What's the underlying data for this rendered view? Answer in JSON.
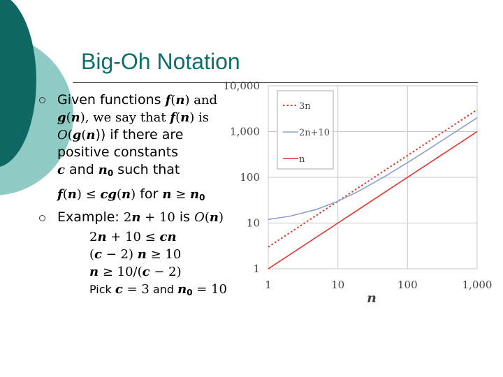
{
  "slide": {
    "title": "Big-Oh Notation",
    "bullet1": {
      "text": [
        "Given functions ",
        "f",
        "(",
        "n",
        ") and ",
        "g",
        "(",
        "n",
        "), we say that ",
        "f",
        "(",
        "n",
        ") is ",
        "O",
        "(",
        "g",
        "(",
        "n",
        ")) if there are ",
        "positive constants ",
        "c",
        " and ",
        "n",
        "0",
        " such that ",
        "f",
        "(",
        "n",
        ") ",
        "≤",
        " ",
        "cg",
        "(",
        "n",
        ")",
        " for ",
        "n",
        " ",
        "≥",
        " ",
        "n",
        "0"
      ]
    },
    "bullet2": {
      "text": [
        "Example: ",
        "2",
        "n",
        " + 10",
        " is ",
        "O",
        "(",
        "n",
        ")"
      ]
    },
    "steps": [
      [
        "2",
        "n",
        " + 10 ",
        "≤",
        " ",
        "cn"
      ],
      [
        "(",
        "c",
        " − 2) ",
        "n",
        " ",
        "≥",
        " 10"
      ],
      [
        "n",
        " ",
        "≥",
        " 10/(",
        "c",
        " − 2)"
      ],
      [
        "Pick ",
        "c",
        " = 3",
        " and ",
        "n",
        "0",
        " = 10"
      ]
    ]
  },
  "chart_data": {
    "type": "line",
    "xscale": "log",
    "yscale": "log",
    "xlim": [
      1,
      1000
    ],
    "ylim": [
      1,
      10000
    ],
    "xticks": [
      "1",
      "10",
      "100",
      "1,000"
    ],
    "yticks": [
      "1",
      "10",
      "100",
      "1,000",
      "10,000"
    ],
    "xlabel": "n",
    "ylabel": "",
    "legend_position": "top-right",
    "series": [
      {
        "name": "3n",
        "style": "dotted",
        "color": "#d93a2b",
        "x": [
          1,
          10,
          100,
          1000
        ],
        "y": [
          3,
          30,
          300,
          3000
        ]
      },
      {
        "name": "2n+10",
        "style": "solid",
        "color": "#8aa0d2",
        "x": [
          1,
          2,
          5,
          10,
          20,
          50,
          100,
          200,
          500,
          1000
        ],
        "y": [
          12,
          14,
          20,
          30,
          50,
          110,
          210,
          410,
          1010,
          2010
        ]
      },
      {
        "name": "n",
        "style": "solid",
        "color": "#e2332a",
        "x": [
          1,
          10,
          100,
          1000
        ],
        "y": [
          1,
          10,
          100,
          1000
        ]
      }
    ]
  },
  "colors": {
    "title": "#0f6f6c",
    "deco_dark": "#0e6763",
    "deco_light": "#8fcac5"
  }
}
